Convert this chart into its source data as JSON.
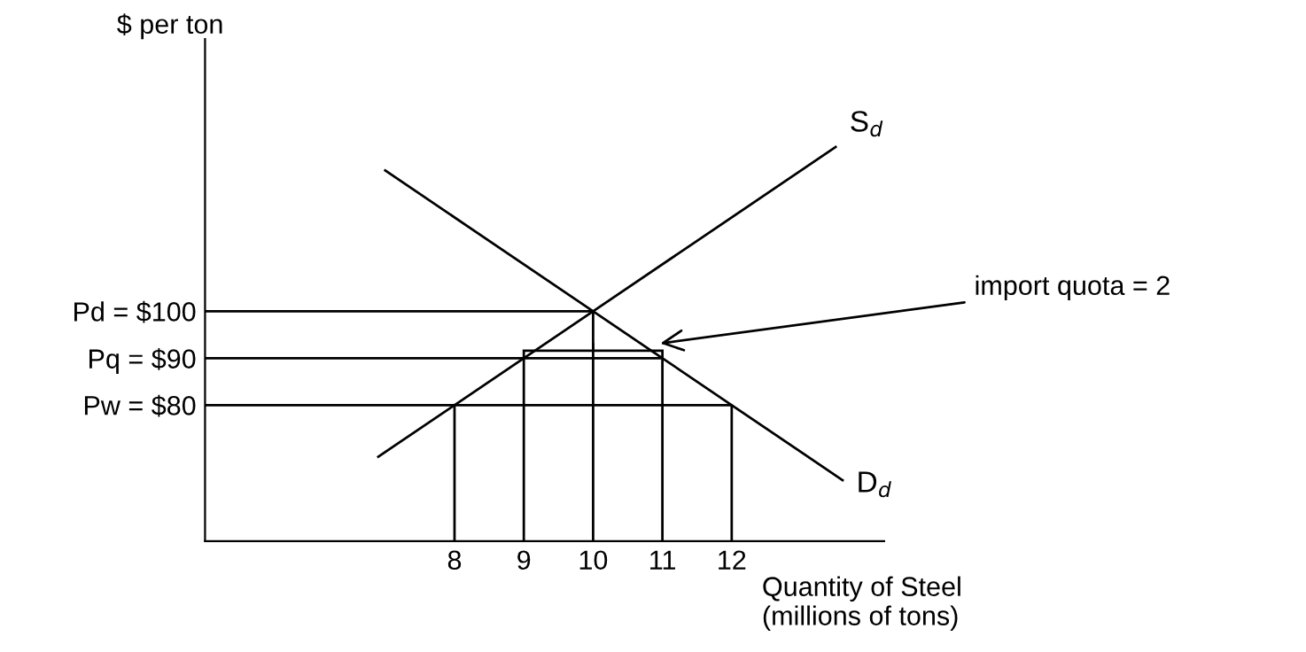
{
  "chart_data": {
    "type": "line",
    "xlabel": "Quantity of Steel\n(millions of tons)",
    "ylabel": "$ per ton",
    "xlim": [
      4.4,
      14.2
    ],
    "ylim": [
      51,
      158
    ],
    "xticks": [
      8,
      9,
      10,
      11,
      12
    ],
    "yticks": [
      {
        "value": 80,
        "label": "Pw = $80"
      },
      {
        "value": 90,
        "label": "Pq = $90"
      },
      {
        "value": 100,
        "label": "Pd = $100"
      }
    ],
    "series": [
      {
        "name": "S$_{d}$",
        "color": "#000000",
        "x": [
          6.9,
          8,
          9,
          10,
          13.5
        ],
        "values": [
          69,
          80,
          90,
          100,
          135
        ]
      },
      {
        "name": "D$_{d}$",
        "color": "#000000",
        "x": [
          7,
          10,
          11,
          12,
          13.6
        ],
        "values": [
          130,
          100,
          90,
          80,
          64
        ]
      },
      {
        "color": "#000000",
        "x": [
          4.4,
          10,
          10
        ],
        "values": [
          100,
          100,
          51
        ]
      },
      {
        "color": "#000000",
        "x": [
          4.4,
          11,
          11
        ],
        "values": [
          90,
          90,
          51
        ]
      },
      {
        "color": "#000000",
        "x": [
          4.4,
          12,
          12
        ],
        "values": [
          80,
          80,
          51
        ]
      },
      {
        "color": "#000000",
        "x": [
          8,
          8
        ],
        "values": [
          80,
          51
        ]
      },
      {
        "color": "#000000",
        "x": [
          9,
          9
        ],
        "values": [
          90,
          51
        ]
      }
    ],
    "annotations": [
      {
        "text": "import quota = 2",
        "x": 10.9,
        "y": 93
      }
    ],
    "grid": false,
    "legend": false,
    "marker": "none",
    "line_style": "solid"
  }
}
